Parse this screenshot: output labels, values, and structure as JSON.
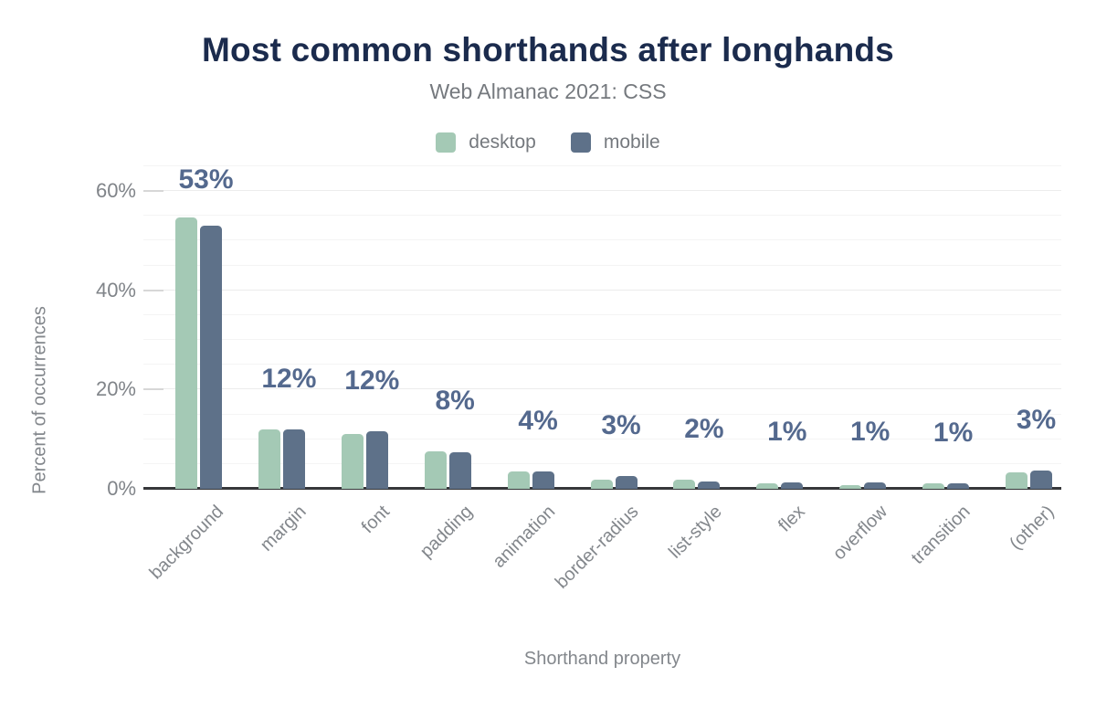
{
  "chart": {
    "title": "Most common shorthands after longhands",
    "subtitle": "Web Almanac 2021: CSS",
    "y_axis_title": "Percent of occurrences",
    "x_axis_title": "Shorthand property",
    "legend": [
      {
        "label": "desktop",
        "color": "#a4c9b5"
      },
      {
        "label": "mobile",
        "color": "#5e7189"
      }
    ]
  },
  "chart_data": {
    "type": "bar",
    "title": "Most common shorthands after longhands",
    "subtitle": "Web Almanac 2021: CSS",
    "xlabel": "Shorthand property",
    "ylabel": "Percent of occurrences",
    "categories": [
      "background",
      "margin",
      "font",
      "padding",
      "animation",
      "border-radius",
      "list-style",
      "flex",
      "overflow",
      "transition",
      "(other)"
    ],
    "series": [
      {
        "name": "desktop",
        "color": "#a4c9b5",
        "values": [
          54.6,
          12.0,
          11.1,
          7.5,
          3.5,
          1.9,
          1.8,
          1.1,
          0.8,
          1.1,
          3.4
        ]
      },
      {
        "name": "mobile",
        "color": "#5e7189",
        "values": [
          53.1,
          12.0,
          11.6,
          7.4,
          3.5,
          2.6,
          1.5,
          1.3,
          1.2,
          1.1,
          3.6
        ]
      }
    ],
    "bar_labels": [
      "53%",
      "12%",
      "12%",
      "8%",
      "4%",
      "3%",
      "2%",
      "1%",
      "1%",
      "1%",
      "3%"
    ],
    "y_ticks": [
      {
        "value": 0,
        "label": "0%"
      },
      {
        "value": 20,
        "label": "20%"
      },
      {
        "value": 40,
        "label": "40%"
      },
      {
        "value": 60,
        "label": "60%"
      }
    ],
    "ylim": [
      0,
      65
    ],
    "grid": true,
    "grid_step": 5,
    "legend_position": "top",
    "colors": {
      "title": "#1b2b4d",
      "subtitle_text": "#75797e",
      "axis_text": "#83878c",
      "value_label": "#54698e",
      "axis_line": "#36373a",
      "gridline_major": "#ececec",
      "gridline_minor": "#f4f4f4"
    }
  }
}
